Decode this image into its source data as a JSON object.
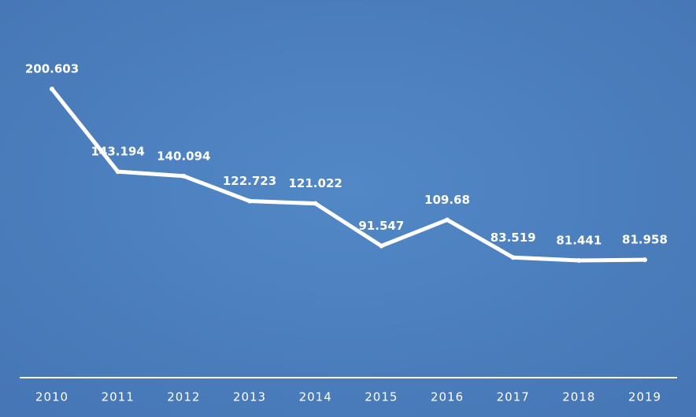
{
  "chart_data": {
    "type": "line",
    "categories": [
      "2010",
      "2011",
      "2012",
      "2013",
      "2014",
      "2015",
      "2016",
      "2017",
      "2018",
      "2019"
    ],
    "values": [
      200.603,
      143.194,
      140.094,
      122.723,
      121.022,
      91.547,
      109.68,
      83.519,
      81.441,
      81.958
    ],
    "color": "#ffffff",
    "ylim": [
      0,
      260
    ]
  }
}
